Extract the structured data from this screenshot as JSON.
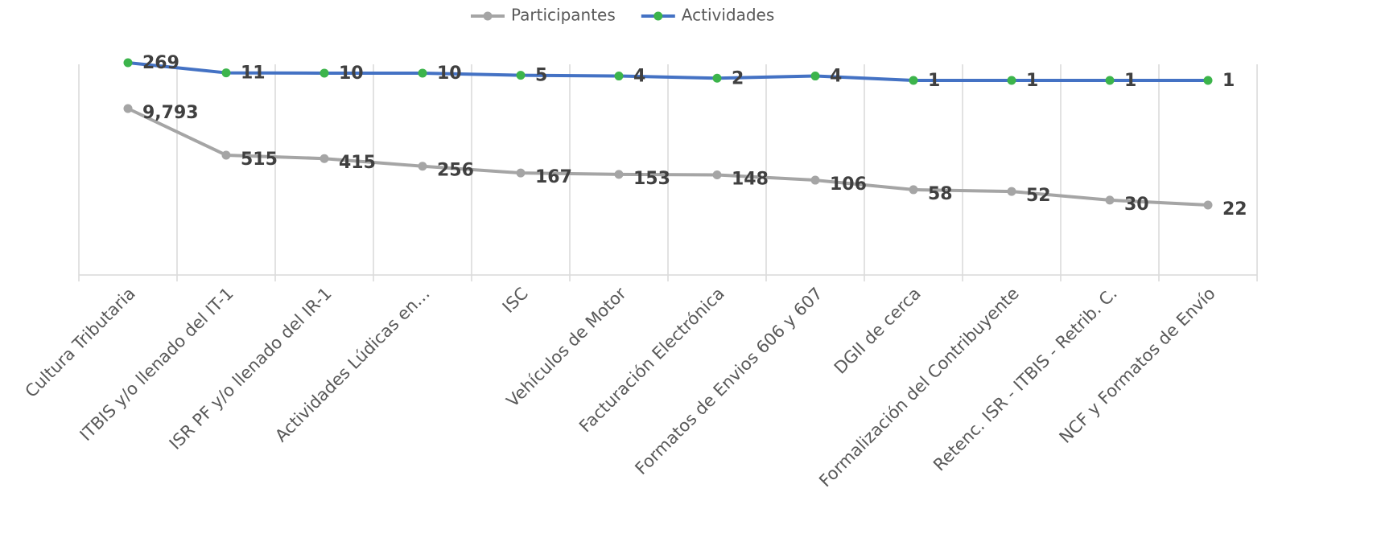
{
  "chart_data": {
    "type": "line",
    "categories": [
      "Cultura Tributaria",
      "ITBIS y/o llenado del IT-1",
      "ISR PF y/o llenado del IR-1",
      "Actividades Lúdicas en…",
      "ISC",
      "Vehículos de Motor",
      "Facturación Electrónica",
      "Formatos de Envios 606 y 607",
      "DGII de cerca",
      "Formalización del Contribuyente",
      "Retenc. ISR - ITBIS - Retrib. C.",
      "NCF y Formatos de Envío"
    ],
    "series": [
      {
        "name": "Participantes",
        "color": "#a5a5a5",
        "marker_color": "#a5a5a5",
        "values": [
          9793,
          515,
          415,
          256,
          167,
          153,
          148,
          106,
          58,
          52,
          30,
          22
        ],
        "value_labels": [
          "9,793",
          "515",
          "415",
          "256",
          "167",
          "153",
          "148",
          "106",
          "58",
          "52",
          "30",
          "22"
        ]
      },
      {
        "name": "Actividades",
        "color": "#4472c4",
        "marker_color": "#3cb44b",
        "values": [
          269,
          11,
          10,
          10,
          5,
          4,
          2,
          4,
          1,
          1,
          1,
          1
        ]
      }
    ],
    "legend": "top",
    "grid": true
  }
}
